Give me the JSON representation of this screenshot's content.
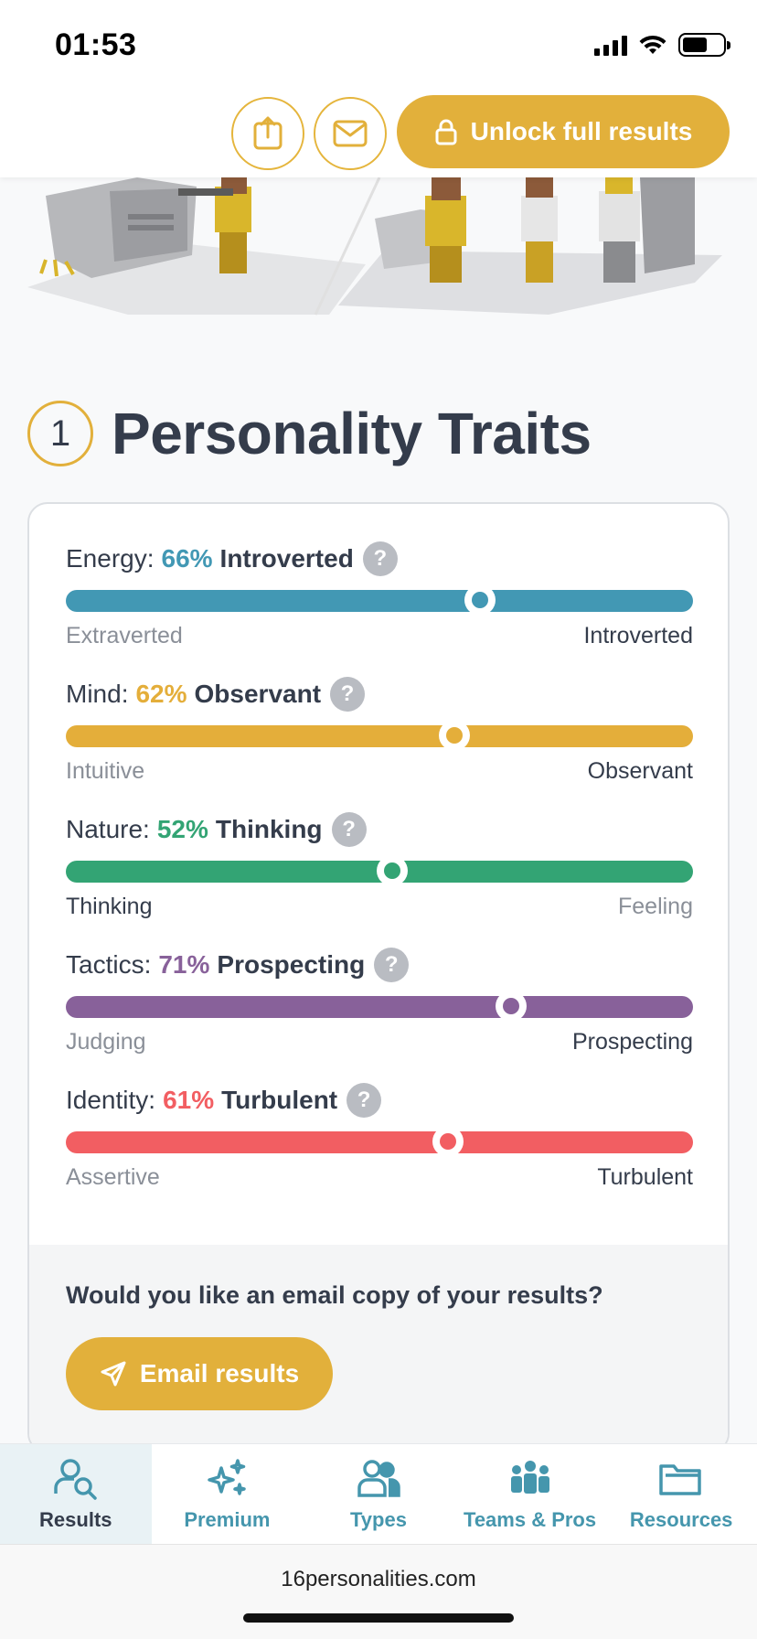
{
  "status": {
    "time": "01:53"
  },
  "header": {
    "unlock_label": "Unlock full results",
    "share_icon": "share-icon",
    "mail_icon": "mail-icon",
    "accent": "#e2b03b"
  },
  "section": {
    "number": "1",
    "title": "Personality Traits"
  },
  "traits": [
    {
      "label": "Energy:",
      "percent": "66%",
      "result": "Introverted",
      "value": 66,
      "left": "Extraverted",
      "right": "Introverted",
      "color": "#4298b4"
    },
    {
      "label": "Mind:",
      "percent": "62%",
      "result": "Observant",
      "value": 62,
      "left": "Intuitive",
      "right": "Observant",
      "color": "#e4ae3a"
    },
    {
      "label": "Nature:",
      "percent": "52%",
      "result": "Thinking",
      "value": 52,
      "left": "Thinking",
      "right": "Feeling",
      "color": "#33a474"
    },
    {
      "label": "Tactics:",
      "percent": "71%",
      "result": "Prospecting",
      "value": 71,
      "left": "Judging",
      "right": "Prospecting",
      "color": "#88619a"
    },
    {
      "label": "Identity:",
      "percent": "61%",
      "result": "Turbulent",
      "value": 61,
      "left": "Assertive",
      "right": "Turbulent",
      "color": "#f25e62"
    }
  ],
  "help_glyph": "?",
  "email": {
    "question": "Would you like an email copy of your results?",
    "button": "Email results"
  },
  "nav": [
    {
      "label": "Results",
      "icon": "results-search-person-icon",
      "active": true
    },
    {
      "label": "Premium",
      "icon": "sparkles-icon",
      "active": false
    },
    {
      "label": "Types",
      "icon": "people-icon",
      "active": false
    },
    {
      "label": "Teams & Pros",
      "icon": "team-icon",
      "active": false
    },
    {
      "label": "Resources",
      "icon": "folder-icon",
      "active": false
    }
  ],
  "browser": {
    "url": "16personalities.com"
  }
}
